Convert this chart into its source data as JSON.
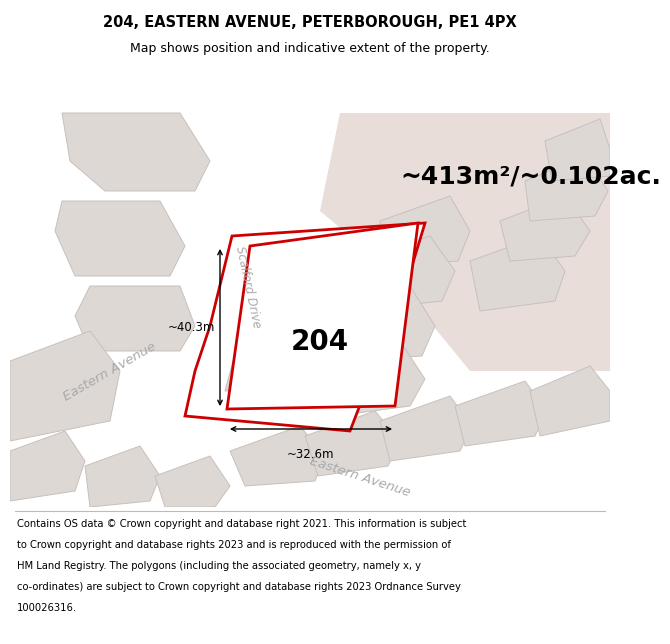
{
  "title_line1": "204, EASTERN AVENUE, PETERBOROUGH, PE1 4PX",
  "title_line2": "Map shows position and indicative extent of the property.",
  "area_text": "~413m²/~0.102ac.",
  "label_204": "204",
  "dim_width": "~32.6m",
  "dim_height": "~40.3m",
  "map_bg": "#f2eeeb",
  "road_bg": "#ffffff",
  "property_outline": "#cc0000",
  "property_fill": "#ffffff",
  "building_fill": "#ddd8d4",
  "building_outline": "#c8c0bc",
  "pink_area": "#e8ddd8",
  "dim_color": "#000000",
  "text_color": "#000000",
  "street_color": "#aaaaaa",
  "title_fontsize": 10.5,
  "subtitle_fontsize": 9,
  "footer_fontsize": 7.2,
  "area_fontsize": 18,
  "label_fontsize": 20,
  "footer_lines": [
    "Contains OS data © Crown copyright and database right 2021. This information is subject",
    "to Crown copyright and database rights 2023 and is reproduced with the permission of",
    "HM Land Registry. The polygons (including the associated geometry, namely x, y",
    "co-ordinates) are subject to Crown copyright and database rights 2023 Ordnance Survey",
    "100026316."
  ]
}
